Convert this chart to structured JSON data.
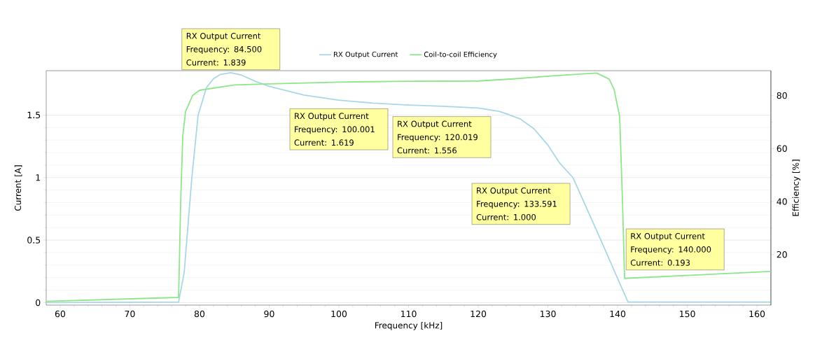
{
  "chart_data": {
    "type": "line",
    "xlabel": "Frequency [kHz]",
    "ylabel": "Current [A]",
    "y2label": "Efficiency [%]",
    "xlim": [
      58,
      162
    ],
    "ylim": [
      -0.02,
      1.855
    ],
    "y2lim": [
      0.9,
      89.4
    ],
    "xticks": [
      60,
      70,
      80,
      90,
      100,
      110,
      120,
      130,
      140,
      150,
      160
    ],
    "yticks": [
      0,
      0.5,
      1,
      1.5
    ],
    "y2ticks": [
      20,
      40,
      60,
      80
    ],
    "grid": "y",
    "legend": "top",
    "series": [
      {
        "name": "RX Output Current",
        "color": "#a8d8e8",
        "type": "line",
        "axis": "y",
        "x": [
          58,
          77,
          77.8,
          78.9,
          79.8,
          81,
          82,
          83,
          84.5,
          86,
          88,
          90,
          95,
          100.001,
          105,
          110,
          115,
          120.019,
          123,
          124.2,
          126,
          128,
          130,
          131.7,
          133.591,
          136,
          138,
          140,
          141.5,
          162
        ],
        "values": [
          0.0,
          0.005,
          0.24,
          1.0,
          1.5,
          1.72,
          1.79,
          1.825,
          1.839,
          1.82,
          1.77,
          1.73,
          1.66,
          1.619,
          1.595,
          1.58,
          1.57,
          1.556,
          1.53,
          1.507,
          1.47,
          1.39,
          1.26,
          1.115,
          1.0,
          0.7,
          0.45,
          0.193,
          0.005,
          0.005
        ]
      },
      {
        "name": "Coil-to-coil Efficiency",
        "color": "#8ee68a",
        "type": "line",
        "axis": "y2",
        "x": [
          58,
          77,
          77.3,
          77.6,
          78,
          79,
          80,
          85,
          90,
          100,
          110,
          120,
          125,
          130,
          135,
          137,
          138.8,
          139.5,
          140.3,
          140.7,
          141,
          162
        ],
        "values": [
          2.3,
          3.8,
          40,
          64.8,
          74,
          80,
          82,
          84,
          84.4,
          85.1,
          85.4,
          85.5,
          86.3,
          87.3,
          88.2,
          88.5,
          86.2,
          82.3,
          72,
          40,
          11.0,
          13.6
        ]
      }
    ],
    "annotations": [
      {
        "text": "RX Output Current Frequency: 84.500 Current: 1.839",
        "x": 84.5,
        "y": 1.839
      },
      {
        "text": "RX Output Current Frequency: 100.001 Current: 1.619",
        "x": 100.001,
        "y": 1.619
      },
      {
        "text": "RX Output Current Frequency: 120.019 Current: 1.556",
        "x": 120.019,
        "y": 1.556
      },
      {
        "text": "RX Output Current Frequency: 133.591 Current: 1.000",
        "x": 133.591,
        "y": 1.0
      },
      {
        "text": "RX Output Current Frequency: 140.000 Current: 0.193",
        "x": 140,
        "y": 0.193
      }
    ]
  }
}
